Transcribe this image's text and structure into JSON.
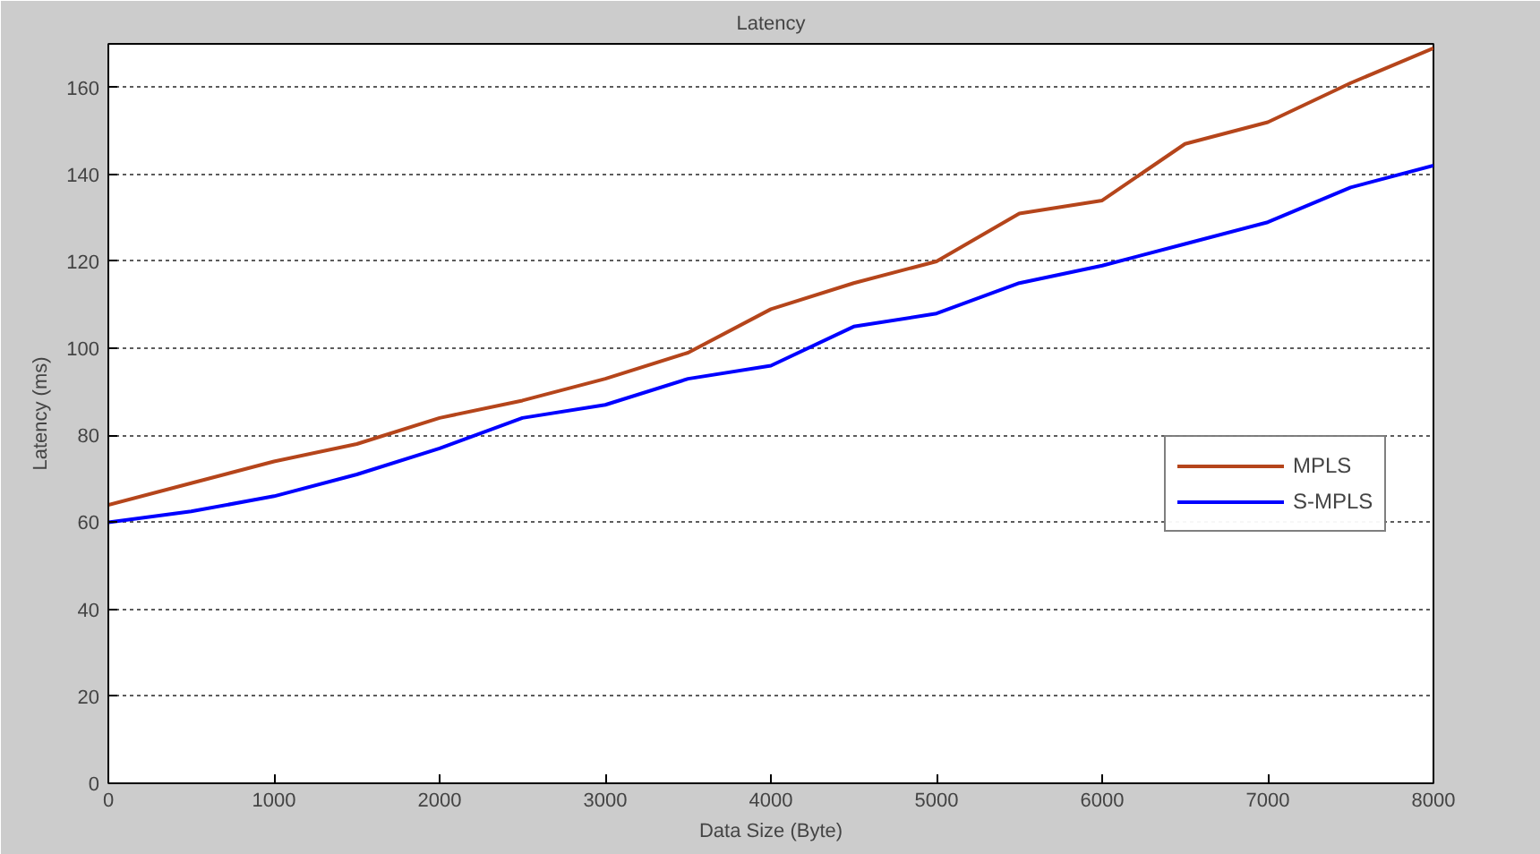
{
  "chart_data": {
    "type": "line",
    "title": "Latency",
    "xlabel": "Data Size (Byte)",
    "ylabel": "Latency (ms)",
    "x": [
      0,
      500,
      1000,
      1500,
      2000,
      2500,
      3000,
      3500,
      4000,
      4500,
      5000,
      5500,
      6000,
      6500,
      7000,
      7500,
      8000
    ],
    "series": [
      {
        "name": "MPLS",
        "color": "#b5451b",
        "values": [
          64,
          69,
          74,
          78,
          84,
          88,
          93,
          99,
          109,
          115,
          120,
          131,
          134,
          147,
          152,
          161,
          169
        ]
      },
      {
        "name": "S-MPLS",
        "color": "#0000ff",
        "values": [
          60,
          62.5,
          66,
          71,
          77,
          84,
          87,
          93,
          96,
          105,
          108,
          115,
          119,
          124,
          129,
          137,
          142
        ]
      }
    ],
    "xlim": [
      0,
      8000
    ],
    "ylim": [
      0,
      170
    ],
    "xticks": [
      0,
      1000,
      2000,
      3000,
      4000,
      5000,
      6000,
      7000,
      8000
    ],
    "yticks": [
      0,
      20,
      40,
      60,
      80,
      100,
      120,
      140,
      160
    ],
    "grid": "y",
    "legend": "right",
    "line_style": "solid",
    "marker": "none"
  }
}
